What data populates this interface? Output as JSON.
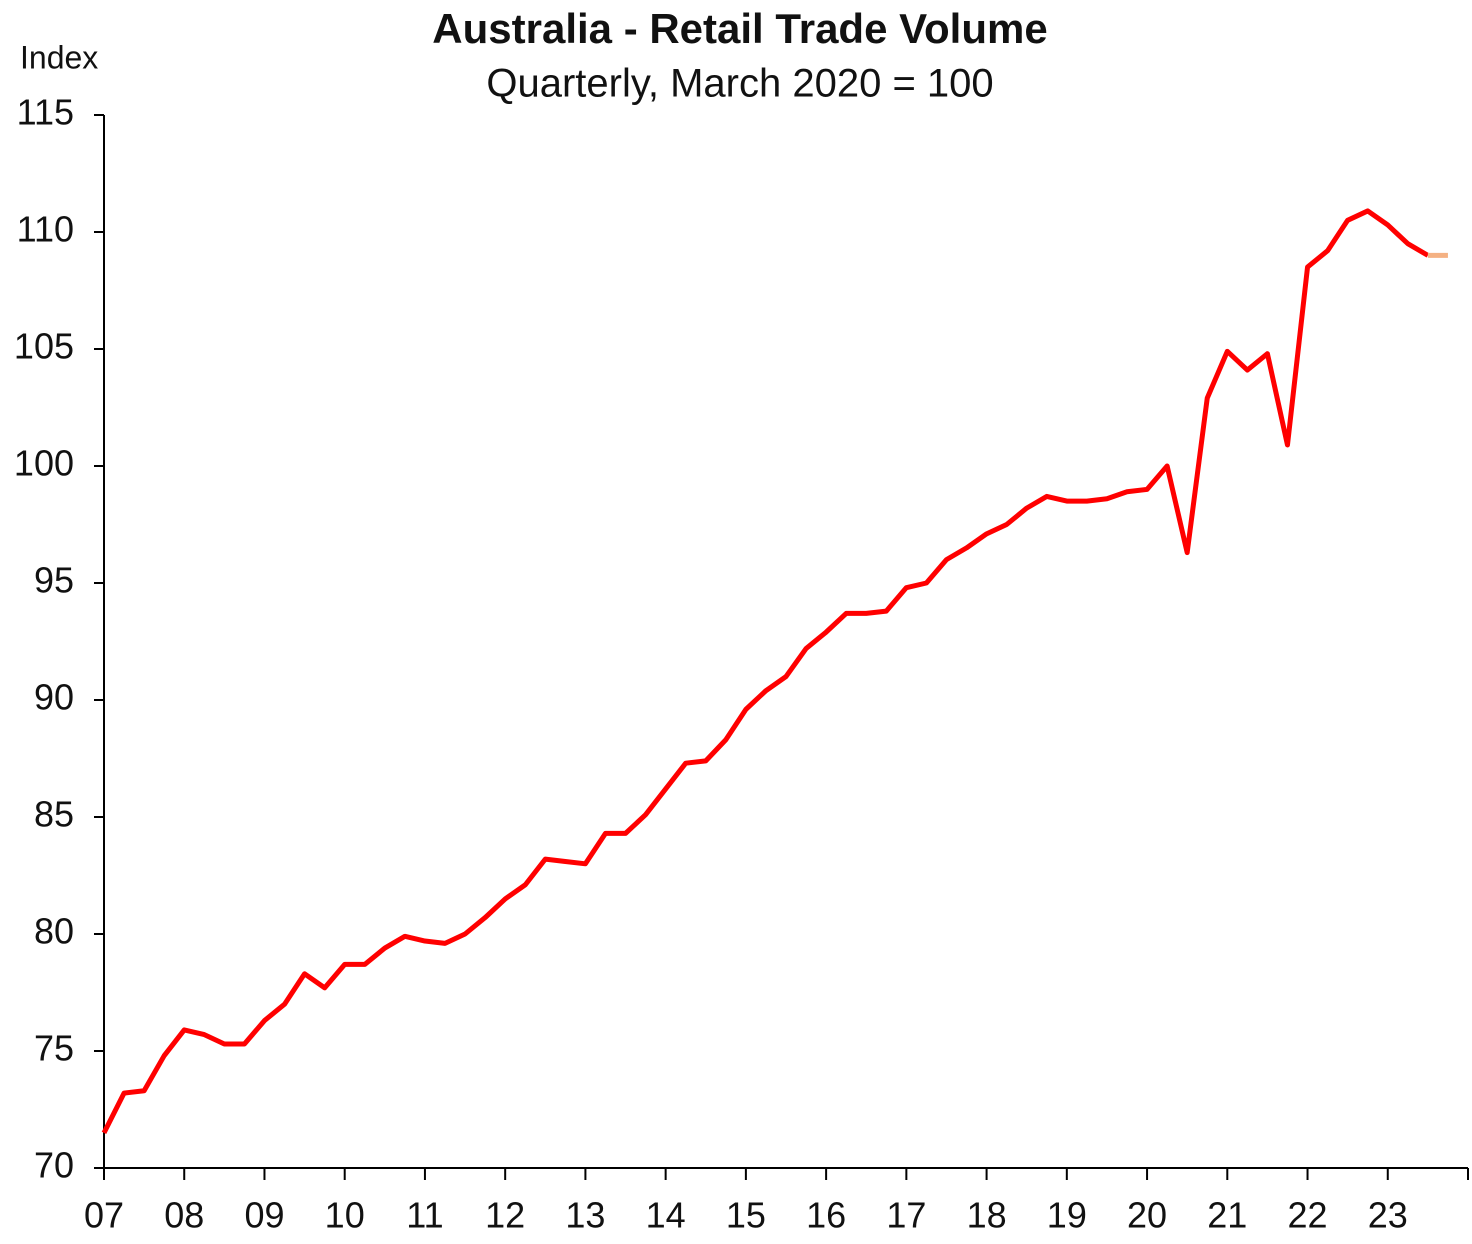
{
  "chart_data": {
    "type": "line",
    "title": "Australia - Retail Trade Volume",
    "subtitle": "Quarterly, March 2020 = 100",
    "y_label": "Index",
    "x": [
      7,
      7.25,
      7.5,
      7.75,
      8,
      8.25,
      8.5,
      8.75,
      9,
      9.25,
      9.5,
      9.75,
      10,
      10.25,
      10.5,
      10.75,
      11,
      11.25,
      11.5,
      11.75,
      12,
      12.25,
      12.5,
      12.75,
      13,
      13.25,
      13.5,
      13.75,
      14,
      14.25,
      14.5,
      14.75,
      15,
      15.25,
      15.5,
      15.75,
      16,
      16.25,
      16.5,
      16.75,
      17,
      17.25,
      17.5,
      17.75,
      18,
      18.25,
      18.5,
      18.75,
      19,
      19.25,
      19.5,
      19.75,
      20,
      20.25,
      20.5,
      20.75,
      21,
      21.25,
      21.5,
      21.75,
      22,
      22.25,
      22.5,
      22.75,
      23,
      23.25,
      23.5,
      23.75
    ],
    "series": [
      {
        "color": "#ff0000",
        "values": [
          71.5,
          73.2,
          73.3,
          74.8,
          75.9,
          75.7,
          75.3,
          75.3,
          76.3,
          77.0,
          78.3,
          77.7,
          78.7,
          78.7,
          79.4,
          79.9,
          79.7,
          79.6,
          80.0,
          80.7,
          81.5,
          82.1,
          83.2,
          83.1,
          83.0,
          84.3,
          84.3,
          85.1,
          86.2,
          87.3,
          87.4,
          88.3,
          89.6,
          90.4,
          91.0,
          92.2,
          92.9,
          93.7,
          93.7,
          93.8,
          94.8,
          95.0,
          96.0,
          96.5,
          97.1,
          97.5,
          98.2,
          98.7,
          98.5,
          98.5,
          98.6,
          98.9,
          99.0,
          100.0,
          96.3,
          102.9,
          104.9,
          104.1,
          104.8,
          100.9,
          108.5,
          109.2,
          110.5,
          110.9,
          110.3,
          109.5,
          109.0,
          null
        ]
      },
      {
        "color": "#f4b183",
        "values": [
          null,
          null,
          null,
          null,
          null,
          null,
          null,
          null,
          null,
          null,
          null,
          null,
          null,
          null,
          null,
          null,
          null,
          null,
          null,
          null,
          null,
          null,
          null,
          null,
          null,
          null,
          null,
          null,
          null,
          null,
          null,
          null,
          null,
          null,
          null,
          null,
          null,
          null,
          null,
          null,
          null,
          null,
          null,
          null,
          null,
          null,
          null,
          null,
          null,
          null,
          null,
          null,
          null,
          null,
          null,
          null,
          null,
          null,
          null,
          null,
          null,
          null,
          null,
          null,
          null,
          null,
          109.0,
          109.0
        ]
      }
    ],
    "xlim": [
      7,
      24
    ],
    "xticks": [
      {
        "value": 7,
        "label": "07"
      },
      {
        "value": 8,
        "label": "08"
      },
      {
        "value": 9,
        "label": "09"
      },
      10,
      11,
      12,
      13,
      14,
      15,
      16,
      17,
      18,
      19,
      20,
      21,
      22,
      23
    ],
    "ylim": [
      70,
      115
    ],
    "yticks": [
      70,
      75,
      80,
      85,
      90,
      95,
      100,
      105,
      110,
      115
    ]
  }
}
